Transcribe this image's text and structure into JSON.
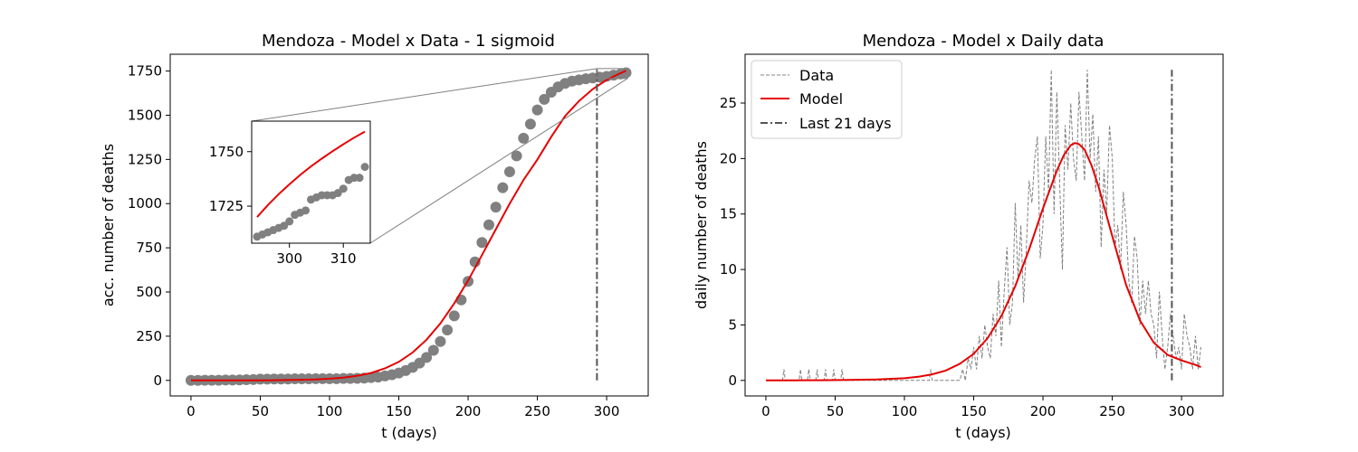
{
  "chart_data": [
    {
      "type": "scatter",
      "title": "Mendoza - Model x Data - 1 sigmoid",
      "xlabel": "t (days)",
      "ylabel": "acc. number of deaths",
      "xlim": [
        -15,
        330
      ],
      "ylim": [
        -88,
        1845
      ],
      "xticks": [
        0,
        50,
        100,
        150,
        200,
        250,
        300
      ],
      "yticks": [
        0,
        250,
        500,
        750,
        1000,
        1250,
        1500,
        1750
      ],
      "grid": false,
      "series": [
        {
          "role": "data",
          "color": "#808080",
          "marker": "circle",
          "x": [
            0,
            5,
            10,
            15,
            20,
            25,
            30,
            35,
            40,
            45,
            50,
            55,
            60,
            65,
            70,
            75,
            80,
            85,
            90,
            95,
            100,
            105,
            110,
            115,
            120,
            125,
            130,
            135,
            140,
            145,
            150,
            155,
            160,
            165,
            170,
            175,
            180,
            185,
            190,
            195,
            200,
            205,
            210,
            215,
            220,
            225,
            230,
            235,
            240,
            245,
            250,
            255,
            260,
            265,
            270,
            275,
            280,
            285,
            290,
            295,
            300,
            305,
            310,
            314
          ],
          "y": [
            0,
            0,
            1,
            1,
            1,
            2,
            2,
            3,
            4,
            5,
            7,
            7,
            8,
            8,
            8,
            9,
            9,
            9,
            10,
            10,
            10,
            10,
            11,
            11,
            12,
            13,
            16,
            19,
            25,
            32,
            42,
            56,
            74,
            98,
            130,
            170,
            220,
            285,
            365,
            455,
            560,
            670,
            780,
            880,
            980,
            1090,
            1180,
            1270,
            1370,
            1450,
            1530,
            1590,
            1630,
            1660,
            1680,
            1693,
            1700,
            1706,
            1711,
            1715,
            1720,
            1727,
            1733,
            1740
          ]
        },
        {
          "role": "model",
          "color": "#e50000",
          "style": "solid",
          "x": [
            0,
            10,
            20,
            30,
            40,
            50,
            60,
            70,
            80,
            90,
            100,
            110,
            120,
            130,
            140,
            150,
            160,
            170,
            180,
            190,
            200,
            210,
            220,
            230,
            240,
            250,
            260,
            270,
            280,
            290,
            300,
            310,
            314
          ],
          "y": [
            0,
            0,
            0.1,
            0.2,
            0.4,
            0.7,
            1.2,
            2,
            3.5,
            5.8,
            9.6,
            16,
            26,
            42,
            68,
            105,
            158,
            230,
            322,
            435,
            565,
            708,
            855,
            1000,
            1134,
            1250,
            1378,
            1495,
            1580,
            1648,
            1700,
            1738,
            1752
          ]
        }
      ],
      "vline": {
        "x": 293,
        "style": "dashdot",
        "color": "#555555",
        "y_range": [
          0,
          1760
        ]
      },
      "inset": {
        "xlim": [
          293,
          315
        ],
        "ylim": [
          1708,
          1764
        ],
        "xticks": [
          300,
          310
        ],
        "yticks": [
          1725,
          1750
        ],
        "data": {
          "x": [
            294,
            295,
            296,
            297,
            298,
            299,
            300,
            301,
            302,
            303,
            304,
            305,
            306,
            307,
            308,
            309,
            310,
            311,
            312,
            313,
            314
          ],
          "y": [
            1711,
            1712,
            1713,
            1714,
            1715,
            1716,
            1718,
            1721,
            1722,
            1723,
            1728,
            1729,
            1730,
            1730,
            1730,
            1731,
            1733,
            1737,
            1738,
            1738,
            1743
          ]
        },
        "model": {
          "x": [
            294,
            296,
            298,
            300,
            302,
            304,
            306,
            308,
            310,
            312,
            314
          ],
          "y": [
            1720,
            1725.5,
            1730.5,
            1735,
            1739.3,
            1743.2,
            1746.8,
            1750.2,
            1753.4,
            1756.4,
            1759.2
          ]
        }
      }
    },
    {
      "type": "line",
      "title": "Mendoza - Model x Daily data",
      "xlabel": "t (days)",
      "ylabel": "daily number of deaths",
      "xlim": [
        -15,
        330
      ],
      "ylim": [
        -1.4,
        29.4
      ],
      "xticks": [
        0,
        50,
        100,
        150,
        200,
        250,
        300
      ],
      "yticks": [
        0,
        5,
        10,
        15,
        20,
        25
      ],
      "grid": false,
      "legend_position": "top-left",
      "series": [
        {
          "name": "Data",
          "color": "#808080",
          "style": "dashed",
          "x": [
            0,
            6,
            12,
            13,
            14,
            15,
            20,
            24,
            25,
            26,
            30,
            31,
            32,
            36,
            37,
            38,
            42,
            43,
            44,
            48,
            49,
            50,
            54,
            55,
            56,
            58,
            70,
            100,
            118,
            119,
            120,
            121,
            130,
            140,
            142,
            144,
            146,
            148,
            150,
            152,
            154,
            156,
            158,
            160,
            162,
            164,
            166,
            168,
            170,
            172,
            174,
            176,
            178,
            180,
            182,
            184,
            186,
            188,
            190,
            192,
            194,
            196,
            198,
            200,
            202,
            204,
            206,
            208,
            210,
            212,
            214,
            216,
            218,
            220,
            222,
            224,
            226,
            228,
            230,
            232,
            234,
            236,
            238,
            240,
            242,
            244,
            246,
            248,
            250,
            252,
            254,
            256,
            258,
            260,
            262,
            264,
            266,
            268,
            270,
            272,
            274,
            276,
            278,
            280,
            282,
            284,
            286,
            288,
            290,
            292,
            294,
            296,
            298,
            300,
            302,
            304,
            306,
            308,
            310,
            312,
            314
          ],
          "y": [
            0,
            0,
            0,
            1,
            0,
            0,
            0,
            0,
            1,
            0,
            0,
            1,
            0,
            0,
            1,
            0,
            0,
            1,
            0,
            0,
            1,
            0,
            0,
            1,
            0,
            0,
            0,
            0,
            0,
            1,
            0,
            0,
            0,
            0,
            1,
            0,
            2,
            1,
            3,
            1,
            4,
            2,
            5,
            3,
            2,
            6,
            4,
            9,
            3,
            8,
            12,
            5,
            7,
            16,
            9,
            14,
            7,
            12,
            18,
            16,
            20,
            22,
            11,
            14,
            22,
            17,
            28,
            15,
            26,
            18,
            10,
            23,
            19,
            25,
            20,
            18,
            26,
            22,
            18,
            28,
            20,
            24,
            17,
            22,
            12,
            19,
            15,
            23,
            20,
            12,
            14,
            10,
            17,
            14,
            9,
            7,
            13,
            11,
            5,
            9,
            6,
            9,
            6,
            5,
            2,
            8,
            4,
            1,
            3,
            6,
            4,
            2,
            3,
            1,
            6,
            4,
            3,
            1,
            4,
            1,
            3
          ]
        },
        {
          "name": "Model",
          "color": "#e50000",
          "style": "solid",
          "x": [
            0,
            20,
            40,
            60,
            80,
            100,
            110,
            120,
            130,
            140,
            150,
            160,
            170,
            180,
            190,
            200,
            210,
            215,
            220,
            223,
            226,
            230,
            235,
            240,
            250,
            260,
            270,
            280,
            290,
            300,
            310,
            314
          ],
          "y": [
            0,
            0.01,
            0.02,
            0.04,
            0.09,
            0.2,
            0.33,
            0.55,
            0.9,
            1.5,
            2.4,
            3.8,
            5.8,
            8.5,
            11.8,
            15.5,
            18.9,
            20.3,
            21.2,
            21.4,
            21.3,
            20.8,
            19.4,
            17.5,
            13,
            8.6,
            5.4,
            3.4,
            2.3,
            1.8,
            1.4,
            1.2
          ]
        },
        {
          "name": "Last 21 days",
          "color": "#555555",
          "style": "dashdot",
          "x": [
            293,
            293
          ],
          "y": [
            0,
            28
          ]
        }
      ]
    }
  ]
}
